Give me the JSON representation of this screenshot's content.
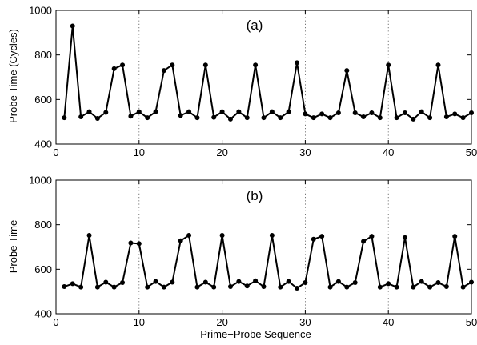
{
  "chart_data": [
    {
      "type": "line",
      "panel_label": "(a)",
      "ylabel": "Probe Time (Cycles)",
      "xlabel": "",
      "xlim": [
        0,
        50
      ],
      "ylim": [
        400,
        1000
      ],
      "x_ticks": [
        "0",
        "10",
        "20",
        "30",
        "40",
        "50"
      ],
      "y_ticks": [
        "400",
        "600",
        "800",
        "1000"
      ],
      "grid": "vertical-dotted",
      "series": [
        {
          "x": [
            1,
            2,
            3,
            4,
            5,
            6,
            7,
            8,
            9,
            10,
            11,
            12,
            13,
            14,
            15,
            16,
            17,
            18,
            19,
            20,
            21,
            22,
            23,
            24,
            25,
            26,
            27,
            28,
            29,
            30,
            31,
            32,
            33,
            34,
            35,
            36,
            37,
            38,
            39,
            40,
            41,
            42,
            43,
            44,
            45,
            46,
            47,
            48,
            49,
            50
          ],
          "values": [
            518,
            930,
            522,
            545,
            515,
            542,
            738,
            755,
            525,
            545,
            518,
            545,
            730,
            755,
            528,
            545,
            518,
            755,
            520,
            545,
            512,
            545,
            518,
            755,
            518,
            545,
            518,
            545,
            765,
            535,
            518,
            535,
            518,
            540,
            730,
            540,
            522,
            540,
            518,
            755,
            518,
            540,
            512,
            545,
            518,
            755,
            522,
            535,
            518,
            540
          ]
        }
      ]
    },
    {
      "type": "line",
      "panel_label": "(b)",
      "ylabel": "Probe Time",
      "xlabel": "Prime−Probe Sequence",
      "xlim": [
        0,
        50
      ],
      "ylim": [
        400,
        1000
      ],
      "x_ticks": [
        "0",
        "10",
        "20",
        "30",
        "40",
        "50"
      ],
      "y_ticks": [
        "400",
        "600",
        "800",
        "1000"
      ],
      "grid": "vertical-dotted",
      "series": [
        {
          "x": [
            1,
            2,
            3,
            4,
            5,
            6,
            7,
            8,
            9,
            10,
            11,
            12,
            13,
            14,
            15,
            16,
            17,
            18,
            19,
            20,
            21,
            22,
            23,
            24,
            25,
            26,
            27,
            28,
            29,
            30,
            31,
            32,
            33,
            34,
            35,
            36,
            37,
            38,
            39,
            40,
            41,
            42,
            43,
            44,
            45,
            46,
            47,
            48,
            49,
            50
          ],
          "values": [
            522,
            535,
            520,
            752,
            520,
            542,
            520,
            540,
            718,
            715,
            520,
            545,
            520,
            542,
            728,
            752,
            520,
            542,
            520,
            752,
            522,
            545,
            525,
            548,
            522,
            752,
            520,
            545,
            515,
            540,
            735,
            748,
            520,
            545,
            520,
            540,
            725,
            748,
            520,
            535,
            520,
            742,
            520,
            545,
            520,
            540,
            522,
            748,
            520,
            542
          ]
        }
      ]
    }
  ]
}
